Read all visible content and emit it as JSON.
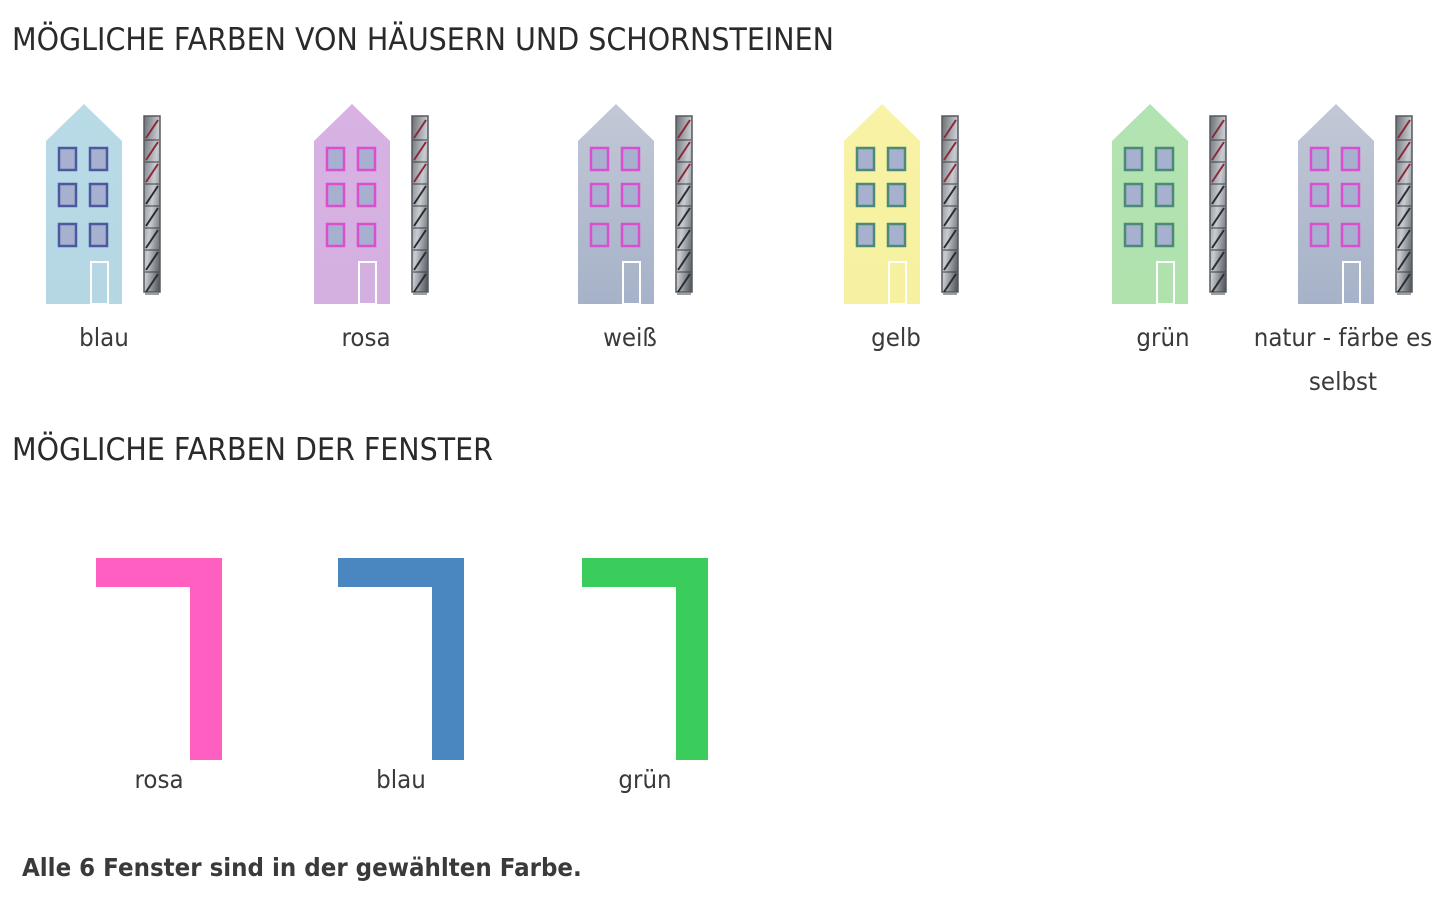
{
  "headings": {
    "houses": "MÖGLICHE FARBEN VON HÄUSERN UND SCHORNSTEINEN",
    "windows": "MÖGLICHE FARBEN DER FENSTER"
  },
  "houses": [
    {
      "label": "blau",
      "color": "#b9dbe7",
      "color_bottom": "#b5d6e3",
      "window_border": "#4b5a9e",
      "window_fill": "#a7b0cf"
    },
    {
      "label": "rosa",
      "color": "#d7b2e3",
      "color_bottom": "#d4b0e0",
      "window_border": "#d94fcf",
      "window_fill": "#a7b0cf"
    },
    {
      "label": "weiß",
      "color": "#c2c8d6",
      "color_bottom": "#a6b2c8",
      "window_border": "#d94fcf",
      "window_fill": "#a7b0cf"
    },
    {
      "label": "gelb",
      "color": "#f8f3a5",
      "color_bottom": "#f6f1a0",
      "window_border": "#4a8a76",
      "window_fill": "#a7b0cf"
    },
    {
      "label": "grün",
      "color": "#b2e3b2",
      "color_bottom": "#b0e2ae",
      "window_border": "#4a8a76",
      "window_fill": "#a7b0cf"
    },
    {
      "label": "natur - färbe es selbst",
      "color": "#c2c8d6",
      "color_bottom": "#a6b2c8",
      "window_border": "#d94fcf",
      "window_fill": "#a7b0cf"
    }
  ],
  "windows": [
    {
      "label": "rosa",
      "color": "#ff5fc0"
    },
    {
      "label": "blau",
      "color": "#4a86c0"
    },
    {
      "label": "grün",
      "color": "#3bcd5c"
    }
  ],
  "note": "Alle 6 Fenster sind in der gewählten Farbe."
}
